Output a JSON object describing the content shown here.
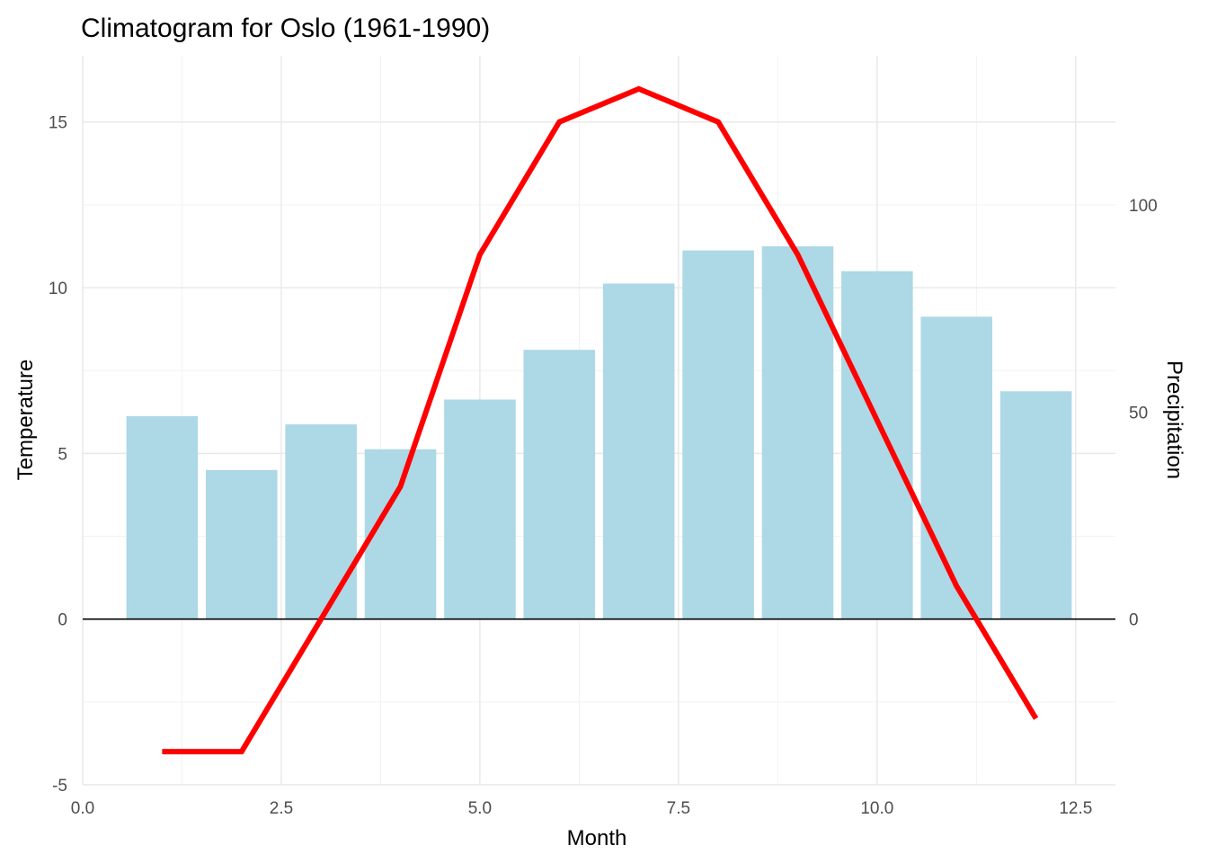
{
  "chart_data": {
    "type": "bar",
    "title": "Climatogram for Oslo (1961-1990)",
    "xlabel": "Month",
    "ylabel": "Temperature",
    "y2label": "Precipitation",
    "xlim": [
      0,
      13
    ],
    "ylim": [
      -5,
      17
    ],
    "y2lim": [
      -40,
      136
    ],
    "grid": true,
    "legend": "none",
    "x_ticks": [
      {
        "value": 0,
        "label": "0.0"
      },
      {
        "value": 2.5,
        "label": "2.5"
      },
      {
        "value": 5,
        "label": "5.0"
      },
      {
        "value": 7.5,
        "label": "7.5"
      },
      {
        "value": 10,
        "label": "10.0"
      },
      {
        "value": 12.5,
        "label": "12.5"
      }
    ],
    "y_ticks": [
      {
        "value": -5,
        "label": "-5"
      },
      {
        "value": 0,
        "label": "0"
      },
      {
        "value": 5,
        "label": "5"
      },
      {
        "value": 10,
        "label": "10"
      },
      {
        "value": 15,
        "label": "15"
      }
    ],
    "y2_ticks": [
      {
        "value": 0,
        "label": "0"
      },
      {
        "value": 50,
        "label": "50"
      },
      {
        "value": 100,
        "label": "100"
      }
    ],
    "x": [
      1,
      2,
      3,
      4,
      5,
      6,
      7,
      8,
      9,
      10,
      11,
      12
    ],
    "series": [
      {
        "type": "bar",
        "axis": "right",
        "color": "#add8e6",
        "values": [
          49,
          36,
          47,
          41,
          53,
          65,
          81,
          89,
          90,
          84,
          73,
          55
        ]
      },
      {
        "type": "line",
        "axis": "left",
        "color": "#ff0000",
        "values": [
          -4,
          -4,
          0,
          4,
          11,
          15,
          16,
          15,
          11,
          6,
          1,
          -3
        ]
      }
    ],
    "zero_line": {
      "value": 0,
      "color": "#000000"
    }
  }
}
